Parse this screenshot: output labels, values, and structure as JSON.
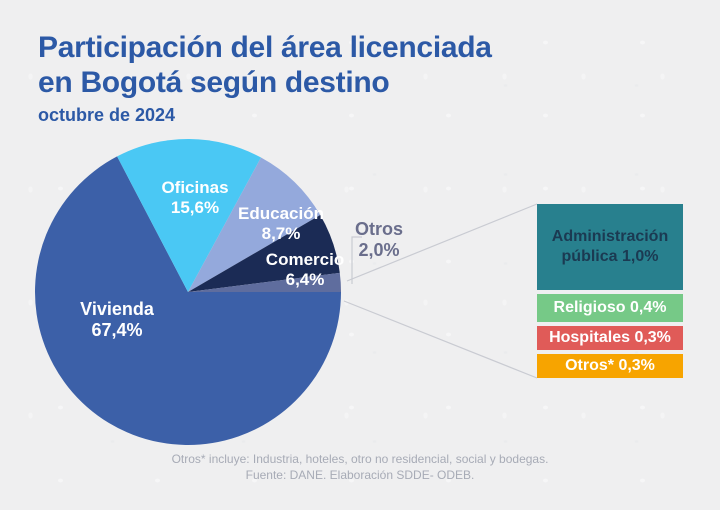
{
  "header": {
    "title_line1": "Participación del área licenciada",
    "title_line2": "en Bogotá según destino",
    "subtitle": "octubre de 2024"
  },
  "chart_data": {
    "type": "pie",
    "title": "Participación del área licenciada en Bogotá según destino",
    "subtitle": "octubre de 2024",
    "unit": "%",
    "legend_position": "labels-on-slices",
    "slices": [
      {
        "label": "Vivienda",
        "value": 67.4,
        "line1": "Vivienda",
        "line2": "67,4%",
        "color": "#3C60A8"
      },
      {
        "label": "Oficinas",
        "value": 15.6,
        "line1": "Oficinas",
        "line2": "15,6%",
        "color": "#4AC8F4"
      },
      {
        "label": "Educación",
        "value": 8.7,
        "line1": "Educación",
        "line2": "8,7%",
        "color": "#94A9DC"
      },
      {
        "label": "Comercio",
        "value": 6.4,
        "line1": "Comercio",
        "line2": "6,4%",
        "color": "#1B2B55"
      },
      {
        "label": "Otros",
        "value": 2.0,
        "line1": "Otros",
        "line2": "2,0%",
        "color": "#5F6D9E"
      }
    ],
    "otros_breakdown": [
      {
        "label": "Administración pública",
        "value": 1.0,
        "display": "Administración pública 1,0%",
        "color": "#28808E",
        "text_color": "#1B3A52"
      },
      {
        "label": "Religioso",
        "value": 0.4,
        "display": "Religioso 0,4%",
        "color": "#76C987",
        "text_color": "#FFFFFF"
      },
      {
        "label": "Hospitales",
        "value": 0.3,
        "display": "Hospitales 0,3%",
        "color": "#E05B58",
        "text_color": "#FFFFFF"
      },
      {
        "label": "Otros*",
        "value": 0.3,
        "display": "Otros* 0,3%",
        "color": "#F7A400",
        "text_color": "#FFFFFF"
      }
    ]
  },
  "footer": {
    "note": "Otros* incluye: Industria, hoteles, otro no residencial, social y bodegas.",
    "source": "Fuente: DANE. Elaboración SDDE- ODEB."
  },
  "colors": {
    "background": "#EFEFF0",
    "title": "#2C59A6",
    "otros_label": "#6A6E8C",
    "callout_line": "#C9CBD2",
    "footer_text": "#A7ABB6"
  }
}
